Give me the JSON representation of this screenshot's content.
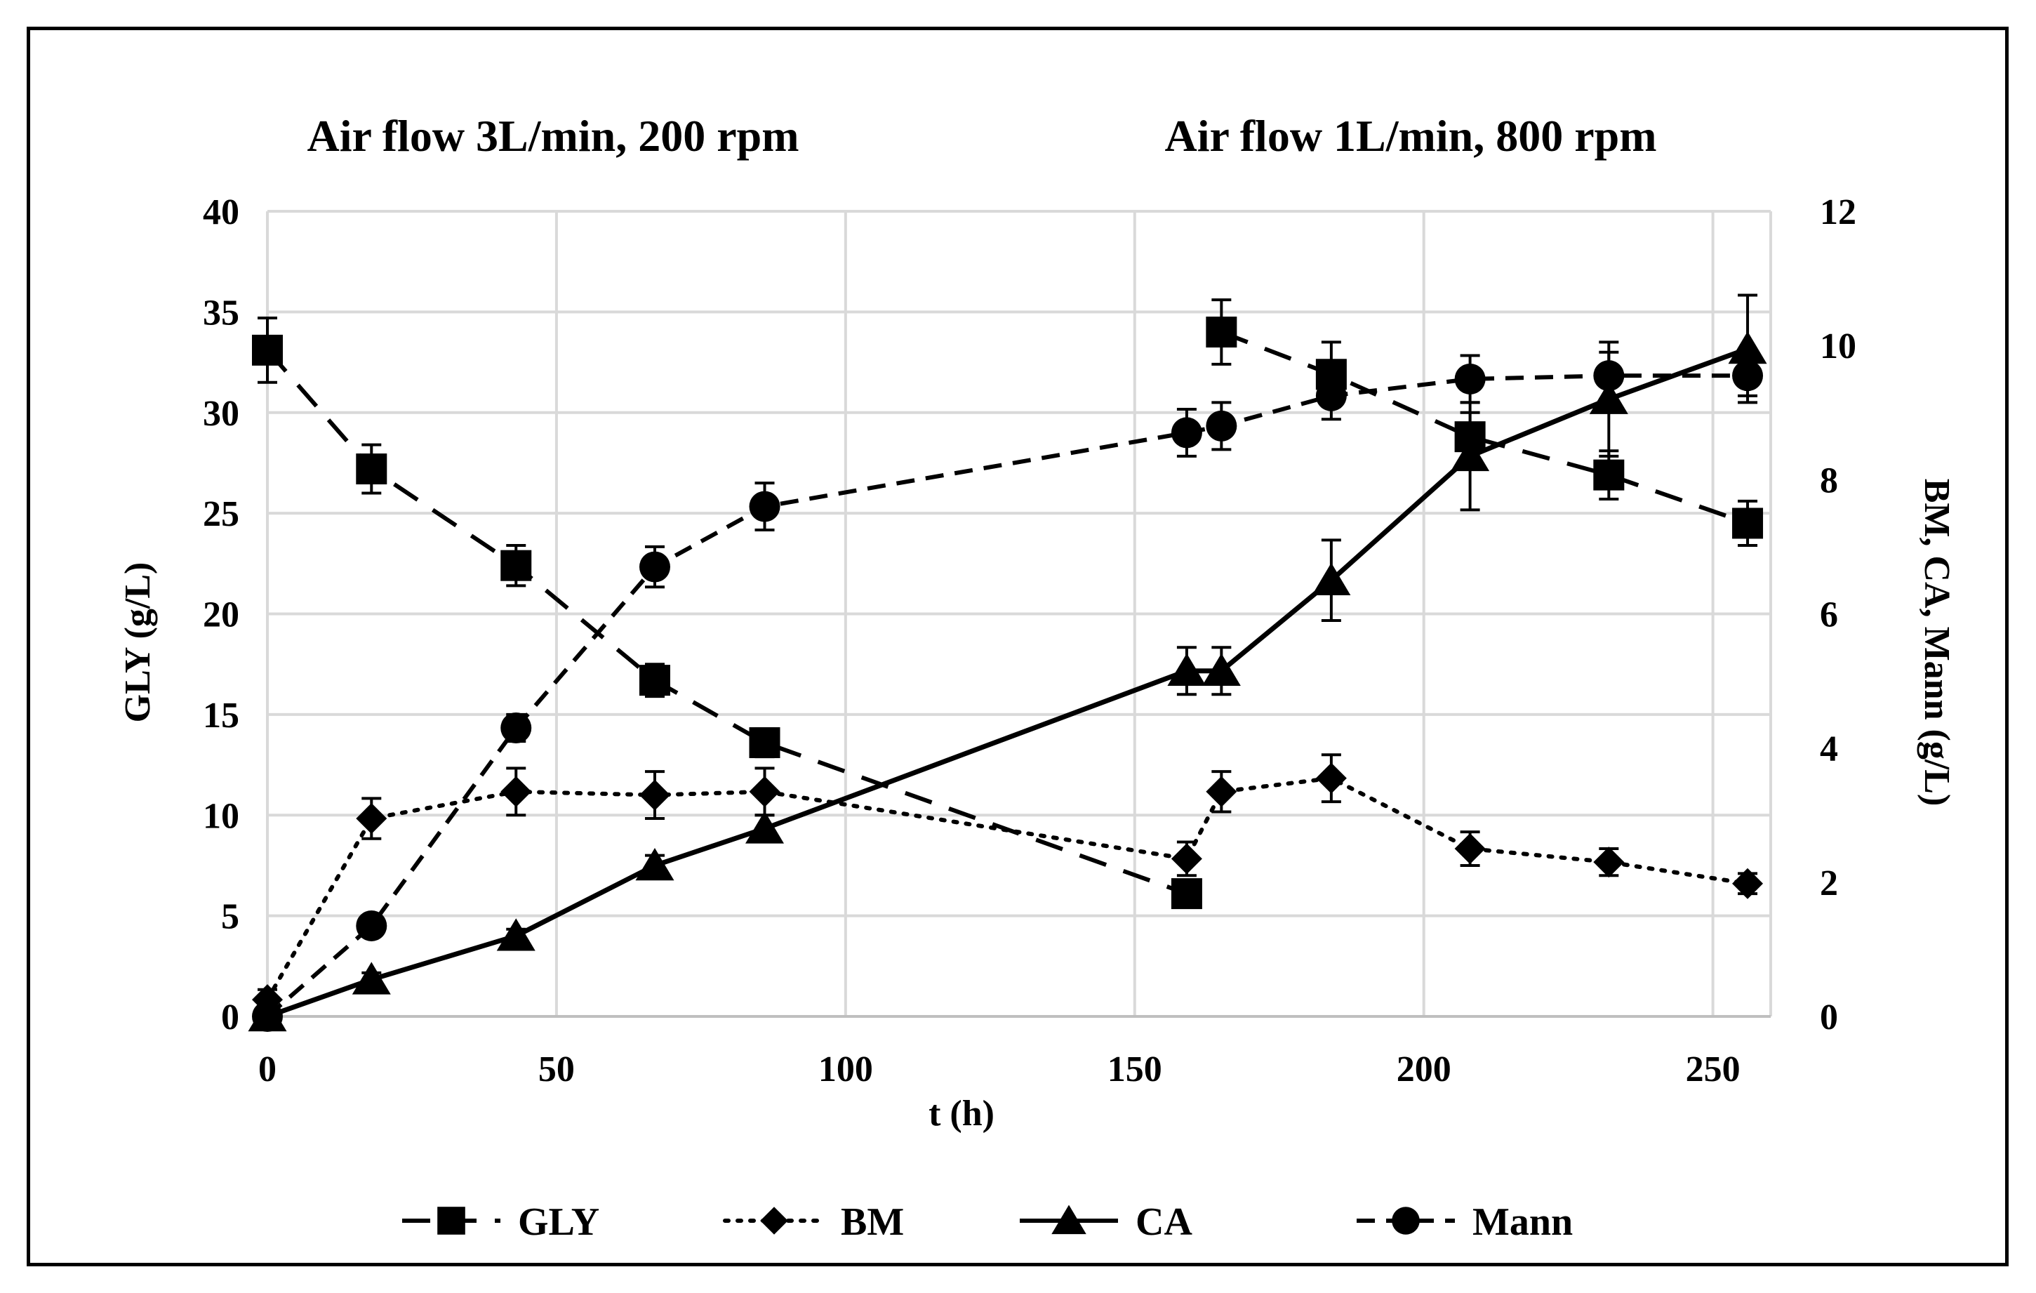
{
  "chart_data": {
    "type": "line",
    "annotations": [
      "Air  flow 3L/min, 200 rpm",
      "Air  flow 1L/min, 800 rpm"
    ],
    "xlabel": "t (h)",
    "ylabel_left": "GLY (g/L)",
    "ylabel_right": "BM, CA, Mann (g/L)",
    "xlim": [
      0,
      260
    ],
    "ylim_left": [
      0,
      40
    ],
    "ylim_right": [
      0,
      12
    ],
    "xticks": [
      "0",
      "50",
      "100",
      "150",
      "200",
      "250"
    ],
    "yticks_left": [
      "0",
      "5",
      "10",
      "15",
      "20",
      "25",
      "30",
      "35",
      "40"
    ],
    "yticks_right": [
      "0",
      "2",
      "4",
      "6",
      "8",
      "10",
      "12"
    ],
    "grid": true,
    "legend_position": "bottom",
    "series": [
      {
        "name": "GLY",
        "axis": "left",
        "line": "longdash",
        "marker": "square",
        "segments": [
          {
            "x": [
              0,
              18,
              43,
              67,
              86,
              159
            ],
            "y": [
              33.1,
              27.2,
              22.4,
              16.7,
              13.6,
              6.1
            ],
            "err": [
              1.6,
              1.2,
              1.0,
              0.8,
              0.7,
              0.5
            ]
          },
          {
            "x": [
              165,
              184,
              208,
              232,
              256
            ],
            "y": [
              34.0,
              31.9,
              28.8,
              26.9,
              24.5
            ],
            "err": [
              1.6,
              1.6,
              1.2,
              1.2,
              1.1
            ]
          }
        ]
      },
      {
        "name": "BM",
        "axis": "right",
        "line": "dotted",
        "marker": "diamond",
        "segments": [
          {
            "x": [
              0,
              18,
              43,
              67,
              86,
              159,
              165,
              184,
              208,
              232,
              256
            ],
            "y": [
              0.25,
              2.95,
              3.35,
              3.3,
              3.35,
              2.35,
              3.35,
              3.55,
              2.5,
              2.3,
              1.98
            ],
            "err": [
              0.15,
              0.3,
              0.35,
              0.35,
              0.35,
              0.25,
              0.3,
              0.35,
              0.25,
              0.2,
              0.15
            ]
          }
        ]
      },
      {
        "name": "CA",
        "axis": "right",
        "line": "solid",
        "marker": "triangle",
        "segments": [
          {
            "x": [
              0,
              18,
              43,
              67,
              86,
              159,
              165,
              184,
              208,
              232,
              256
            ],
            "y": [
              0.0,
              0.55,
              1.2,
              2.25,
              2.8,
              5.15,
              5.15,
              6.5,
              8.35,
              9.2,
              9.95
            ],
            "err": [
              0.05,
              0.1,
              0.1,
              0.15,
              0.2,
              0.35,
              0.35,
              0.6,
              0.8,
              0.85,
              0.8
            ]
          }
        ]
      },
      {
        "name": "Mann",
        "axis": "right",
        "line": "dashed",
        "marker": "circle",
        "segments": [
          {
            "x": [
              0,
              18,
              43,
              67,
              86,
              159,
              165,
              184,
              208,
              232,
              256
            ],
            "y": [
              0.0,
              1.35,
              4.3,
              6.7,
              7.6,
              8.7,
              8.8,
              9.25,
              9.5,
              9.55,
              9.55
            ],
            "err": [
              0.05,
              0.1,
              0.2,
              0.3,
              0.35,
              0.35,
              0.35,
              0.35,
              0.35,
              0.35,
              0.3
            ]
          }
        ]
      }
    ]
  }
}
